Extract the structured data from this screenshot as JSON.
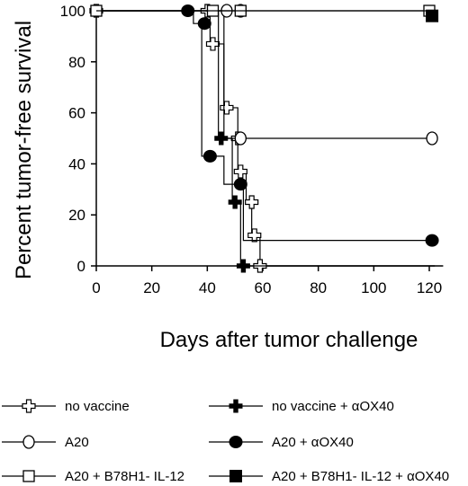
{
  "chart_data": {
    "type": "line",
    "xlabel": "Days after tumor challenge",
    "ylabel": "Percent tumor-free survival",
    "xlim": [
      0,
      125
    ],
    "ylim": [
      0,
      100
    ],
    "x_ticks": [
      0,
      20,
      40,
      60,
      80,
      100,
      120
    ],
    "y_ticks": [
      0,
      20,
      40,
      60,
      80,
      100
    ],
    "grid": false,
    "legend_position": "bottom",
    "series": [
      {
        "name": "no vaccine",
        "marker": "open-cross",
        "steps": [
          [
            0,
            100
          ],
          [
            36,
            100
          ],
          [
            41,
            100
          ],
          [
            41,
            87
          ],
          [
            46,
            87
          ],
          [
            46,
            62
          ],
          [
            51,
            62
          ],
          [
            51,
            37
          ],
          [
            54,
            37
          ],
          [
            54,
            25
          ],
          [
            56,
            25
          ],
          [
            56,
            12
          ],
          [
            59,
            12
          ],
          [
            59,
            0
          ],
          [
            122,
            0
          ]
        ],
        "markers": [
          [
            0,
            100
          ],
          [
            40,
            100
          ],
          [
            42,
            87
          ],
          [
            47,
            62
          ],
          [
            51,
            50
          ],
          [
            52,
            37
          ],
          [
            56,
            25
          ],
          [
            57,
            12
          ],
          [
            59,
            0
          ]
        ]
      },
      {
        "name": "no vaccine + αOX40",
        "marker": "filled-cross",
        "steps": [
          [
            0,
            100
          ],
          [
            44,
            100
          ],
          [
            44,
            50
          ],
          [
            49,
            50
          ],
          [
            49,
            25
          ],
          [
            52,
            25
          ],
          [
            52,
            0
          ],
          [
            122,
            0
          ]
        ],
        "markers": [
          [
            45,
            50
          ],
          [
            50,
            25
          ],
          [
            53,
            0
          ]
        ]
      },
      {
        "name": "A20",
        "marker": "open-circle",
        "steps": [
          [
            0,
            100
          ],
          [
            46,
            100
          ],
          [
            46,
            50
          ],
          [
            122,
            50
          ]
        ],
        "markers": [
          [
            47,
            100
          ],
          [
            52,
            100
          ],
          [
            52,
            50
          ],
          [
            121,
            50
          ]
        ]
      },
      {
        "name": "A20 +  αOX40",
        "marker": "filled-circle",
        "steps": [
          [
            0,
            100
          ],
          [
            35,
            100
          ],
          [
            35,
            95
          ],
          [
            38,
            95
          ],
          [
            38,
            43
          ],
          [
            46,
            43
          ],
          [
            46,
            32
          ],
          [
            53,
            32
          ],
          [
            53,
            10
          ],
          [
            122,
            10
          ]
        ],
        "markers": [
          [
            33,
            100
          ],
          [
            39,
            95
          ],
          [
            41,
            43
          ],
          [
            52,
            32
          ],
          [
            121,
            10
          ]
        ]
      },
      {
        "name": "A20 + B78H1- IL-12",
        "marker": "open-square",
        "steps": [
          [
            0,
            100
          ],
          [
            122,
            100
          ]
        ],
        "markers": [
          [
            0,
            100
          ],
          [
            42,
            100
          ],
          [
            52,
            100
          ],
          [
            120,
            100
          ]
        ]
      },
      {
        "name": "A20 + B78H1- IL-12 + αOX40",
        "marker": "filled-square",
        "steps": [
          [
            0,
            100
          ],
          [
            120,
            100
          ],
          [
            120,
            98
          ],
          [
            122,
            98
          ]
        ],
        "markers": [
          [
            121,
            98
          ]
        ]
      }
    ]
  },
  "colors": {
    "ink": "#000000",
    "background": "#ffffff"
  }
}
